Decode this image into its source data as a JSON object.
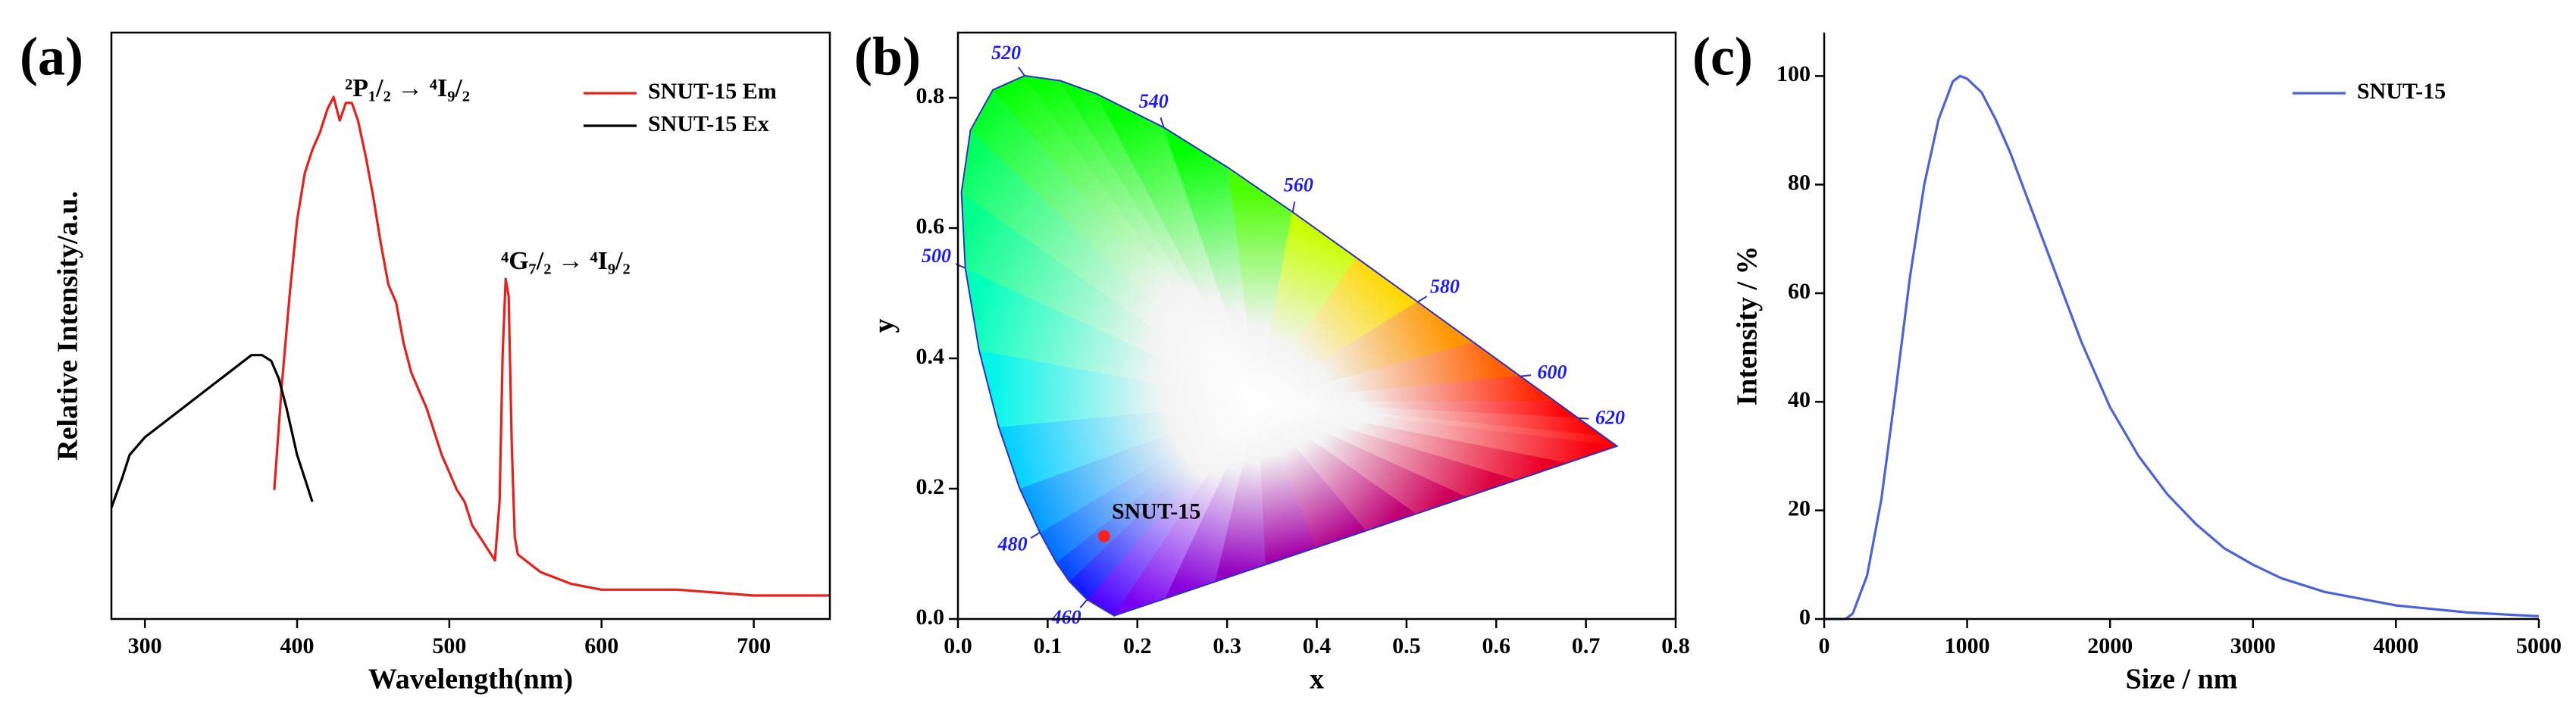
{
  "chart_data": [
    {
      "type": "line",
      "label": "(a)",
      "xlabel": "Wavelength(nm)",
      "ylabel": "Relative Intensity/a.u.",
      "xlim": [
        278,
        750
      ],
      "ylim": [
        0,
        1
      ],
      "xticks": [
        300,
        400,
        500,
        600,
        700
      ],
      "legend": "upper right",
      "annotations": [
        "²P₁/₂ → ⁴I₉/₂",
        "⁴G₇/₂ → ⁴I₉/₂"
      ],
      "series": [
        {
          "name": "SNUT-15 Em",
          "color": "#e8201a",
          "x": [
            385,
            390,
            395,
            400,
            405,
            410,
            415,
            420,
            424,
            428,
            432,
            436,
            440,
            445,
            450,
            455,
            460,
            465,
            470,
            475,
            480,
            485,
            490,
            495,
            500,
            505,
            510,
            515,
            520,
            525,
            530,
            533,
            535,
            537,
            539,
            541,
            543,
            545,
            550,
            560,
            580,
            600,
            650,
            700,
            750
          ],
          "values": [
            0.22,
            0.4,
            0.55,
            0.68,
            0.76,
            0.8,
            0.83,
            0.87,
            0.89,
            0.85,
            0.88,
            0.88,
            0.85,
            0.79,
            0.72,
            0.64,
            0.57,
            0.54,
            0.47,
            0.42,
            0.39,
            0.36,
            0.32,
            0.28,
            0.25,
            0.22,
            0.2,
            0.16,
            0.14,
            0.12,
            0.1,
            0.2,
            0.45,
            0.58,
            0.55,
            0.3,
            0.14,
            0.11,
            0.1,
            0.08,
            0.06,
            0.05,
            0.05,
            0.04,
            0.04
          ]
        },
        {
          "name": "SNUT-15 Ex",
          "color": "#000000",
          "x": [
            278,
            285,
            290,
            300,
            310,
            320,
            330,
            340,
            350,
            360,
            370,
            377,
            383,
            388,
            393,
            400,
            405,
            410
          ],
          "values": [
            0.19,
            0.24,
            0.28,
            0.31,
            0.33,
            0.35,
            0.37,
            0.39,
            0.41,
            0.43,
            0.45,
            0.45,
            0.44,
            0.41,
            0.36,
            0.28,
            0.24,
            0.2
          ]
        }
      ]
    },
    {
      "type": "cie",
      "label": "(b)",
      "xlabel": "x",
      "ylabel": "y",
      "xlim": [
        0,
        0.8
      ],
      "ylim": [
        0,
        0.9
      ],
      "xticks": [
        {
          "value": 0,
          "label": "0.0"
        },
        {
          "value": 0.1,
          "label": "0.1"
        },
        {
          "value": 0.2,
          "label": "0.2"
        },
        {
          "value": 0.3,
          "label": "0.3"
        },
        {
          "value": 0.4,
          "label": "0.4"
        },
        {
          "value": 0.5,
          "label": "0.5"
        },
        {
          "value": 0.6,
          "label": "0.6"
        },
        {
          "value": 0.7,
          "label": "0.7"
        },
        {
          "value": 0.8,
          "label": "0.8"
        }
      ],
      "yticks": [
        {
          "value": 0,
          "label": "0.0"
        },
        {
          "value": 0.2,
          "label": "0.2"
        },
        {
          "value": 0.4,
          "label": "0.4"
        },
        {
          "value": 0.6,
          "label": "0.6"
        },
        {
          "value": 0.8,
          "label": "0.8"
        }
      ],
      "locus_color": "#3030c0",
      "locus_label_color": "#1a1aff",
      "locus": {
        "x": [
          0.1741,
          0.144,
          0.1241,
          0.1096,
          0.0913,
          0.0687,
          0.0454,
          0.0235,
          0.0082,
          0.0039,
          0.0139,
          0.0389,
          0.0743,
          0.1142,
          0.1547,
          0.2296,
          0.3016,
          0.3731,
          0.4441,
          0.5125,
          0.5752,
          0.627,
          0.6658,
          0.6915,
          0.719,
          0.7347
        ],
        "y": [
          0.005,
          0.0297,
          0.0578,
          0.0868,
          0.1327,
          0.2007,
          0.295,
          0.4127,
          0.5384,
          0.6548,
          0.7502,
          0.812,
          0.8338,
          0.8262,
          0.8059,
          0.7543,
          0.6923,
          0.6245,
          0.5547,
          0.4866,
          0.4242,
          0.3725,
          0.334,
          0.3083,
          0.2809,
          0.2653
        ]
      },
      "locus_labels": {
        "labels": [
          460,
          480,
          500,
          520,
          540,
          560,
          580,
          600,
          620
        ],
        "x": [
          0.144,
          0.0913,
          0.0082,
          0.0743,
          0.2296,
          0.3731,
          0.5125,
          0.627,
          0.6915
        ],
        "y": [
          0.0297,
          0.1327,
          0.5384,
          0.8338,
          0.7543,
          0.6245,
          0.4866,
          0.3725,
          0.3083
        ]
      },
      "points": [
        {
          "name": "SNUT-15",
          "x": 0.163,
          "y": 0.127,
          "color": "#ff2020"
        }
      ]
    },
    {
      "type": "line",
      "label": "(c)",
      "xlabel": "Size / nm",
      "ylabel": "Intensity / %",
      "xlim": [
        0,
        5000
      ],
      "ylim": [
        0,
        108
      ],
      "xticks": [
        0,
        1000,
        2000,
        3000,
        4000,
        5000
      ],
      "yticks": [
        0,
        20,
        40,
        60,
        80,
        100
      ],
      "legend": "upper right",
      "x": [
        0,
        150,
        200,
        300,
        400,
        500,
        600,
        700,
        800,
        900,
        950,
        1000,
        1100,
        1200,
        1300,
        1400,
        1500,
        1600,
        1700,
        1800,
        1900,
        2000,
        2200,
        2400,
        2600,
        2800,
        3000,
        3200,
        3500,
        4000,
        4500,
        5000
      ],
      "series": [
        {
          "name": "SNUT-15",
          "color": "#4a63d8",
          "values": [
            0,
            0,
            1,
            8,
            22,
            42,
            63,
            80,
            92,
            99,
            100,
            99.5,
            97,
            92,
            86,
            79,
            72,
            65,
            58,
            51,
            45,
            39,
            30,
            23,
            17.5,
            13,
            10,
            7.5,
            5,
            2.5,
            1.2,
            0.5
          ]
        }
      ]
    }
  ]
}
